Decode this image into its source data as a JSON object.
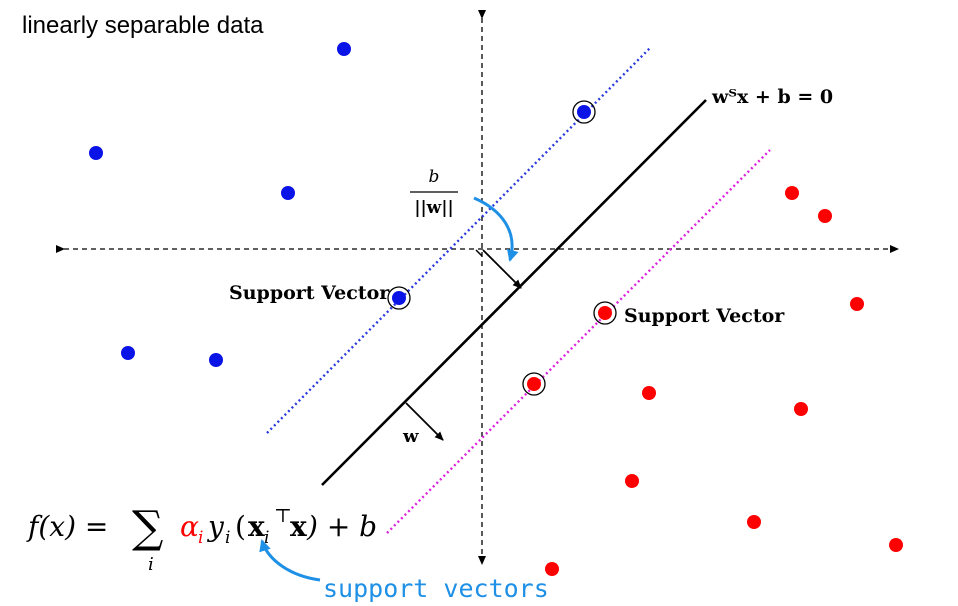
{
  "title": "linearly separable data",
  "colors": {
    "class_positive": "#0a14e6",
    "class_negative": "#ff0000",
    "positive_margin_line": "#2a3adf",
    "negative_margin_line": "#e020e0",
    "annotation": "#1e90e6",
    "axis": "#000000"
  },
  "labels": {
    "hyperplane_equation": "wᵀx + b = 0",
    "offset_numerator": "b",
    "offset_denominator": "||w||",
    "normal_vector": "w",
    "support_vector_left": "Support Vector",
    "support_vector_right": "Support Vector",
    "annotation_support_vectors": "support vectors"
  },
  "formula": {
    "lhs": "f(x) = ",
    "sum_sign": "∑",
    "sum_index": "i",
    "alpha": "α",
    "alpha_sub": "i",
    "y": "y",
    "y_sub": "i",
    "open_paren": "(",
    "x_vec": "x",
    "x_sub": "i",
    "transpose": "⊤",
    "x_vec2": "x",
    "rest": ") + b"
  }
}
